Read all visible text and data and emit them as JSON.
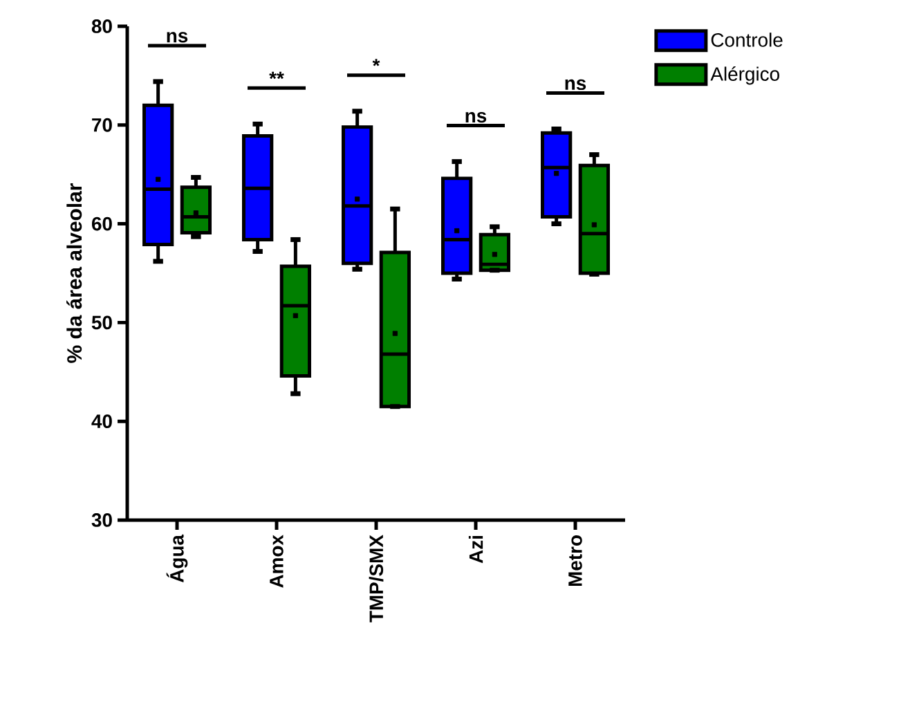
{
  "chart_data": {
    "type": "box",
    "ylabel": "% da área alveolar",
    "categories": [
      "Água",
      "Amox",
      "TMP/SMX",
      "Azi",
      "Metro"
    ],
    "series": [
      {
        "name": "Controle",
        "color": "#0000ff",
        "boxes": [
          {
            "low": 56.2,
            "q1": 57.9,
            "median": 63.5,
            "q3": 72.0,
            "high": 74.4,
            "mean": 64.5
          },
          {
            "low": 57.2,
            "q1": 58.4,
            "median": 63.6,
            "q3": 68.9,
            "high": 70.1
          },
          {
            "low": 55.4,
            "q1": 56.0,
            "median": 61.8,
            "q3": 69.8,
            "high": 71.4,
            "mean": 62.5
          },
          {
            "low": 54.4,
            "q1": 55.0,
            "median": 58.4,
            "q3": 64.6,
            "high": 66.3,
            "mean": 59.3
          },
          {
            "low": 60.0,
            "q1": 60.7,
            "median": 65.7,
            "q3": 69.2,
            "high": 69.6,
            "mean": 65.1
          }
        ]
      },
      {
        "name": "Alérgico",
        "color": "#007f00",
        "boxes": [
          {
            "low": 58.7,
            "q1": 59.1,
            "median": 60.7,
            "q3": 63.7,
            "high": 64.7,
            "mean": 61.1
          },
          {
            "low": 42.8,
            "q1": 44.6,
            "median": 51.7,
            "q3": 55.7,
            "high": 58.4,
            "mean": 50.7
          },
          {
            "low": 41.5,
            "q1": 41.5,
            "median": 46.8,
            "q3": 57.1,
            "high": 61.5,
            "mean": 48.9
          },
          {
            "low": 55.3,
            "q1": 55.3,
            "median": 55.9,
            "q3": 58.9,
            "high": 59.7,
            "mean": 56.9
          },
          {
            "low": 54.9,
            "q1": 55.0,
            "median": 59.0,
            "q3": 65.9,
            "high": 67.0,
            "mean": 59.9
          }
        ]
      }
    ],
    "ylim": [
      30,
      80
    ],
    "yticks": [
      30,
      40,
      50,
      60,
      70,
      80
    ],
    "legend": "top right",
    "annotations": [
      "ns",
      "**",
      "*",
      "ns",
      "ns"
    ]
  }
}
